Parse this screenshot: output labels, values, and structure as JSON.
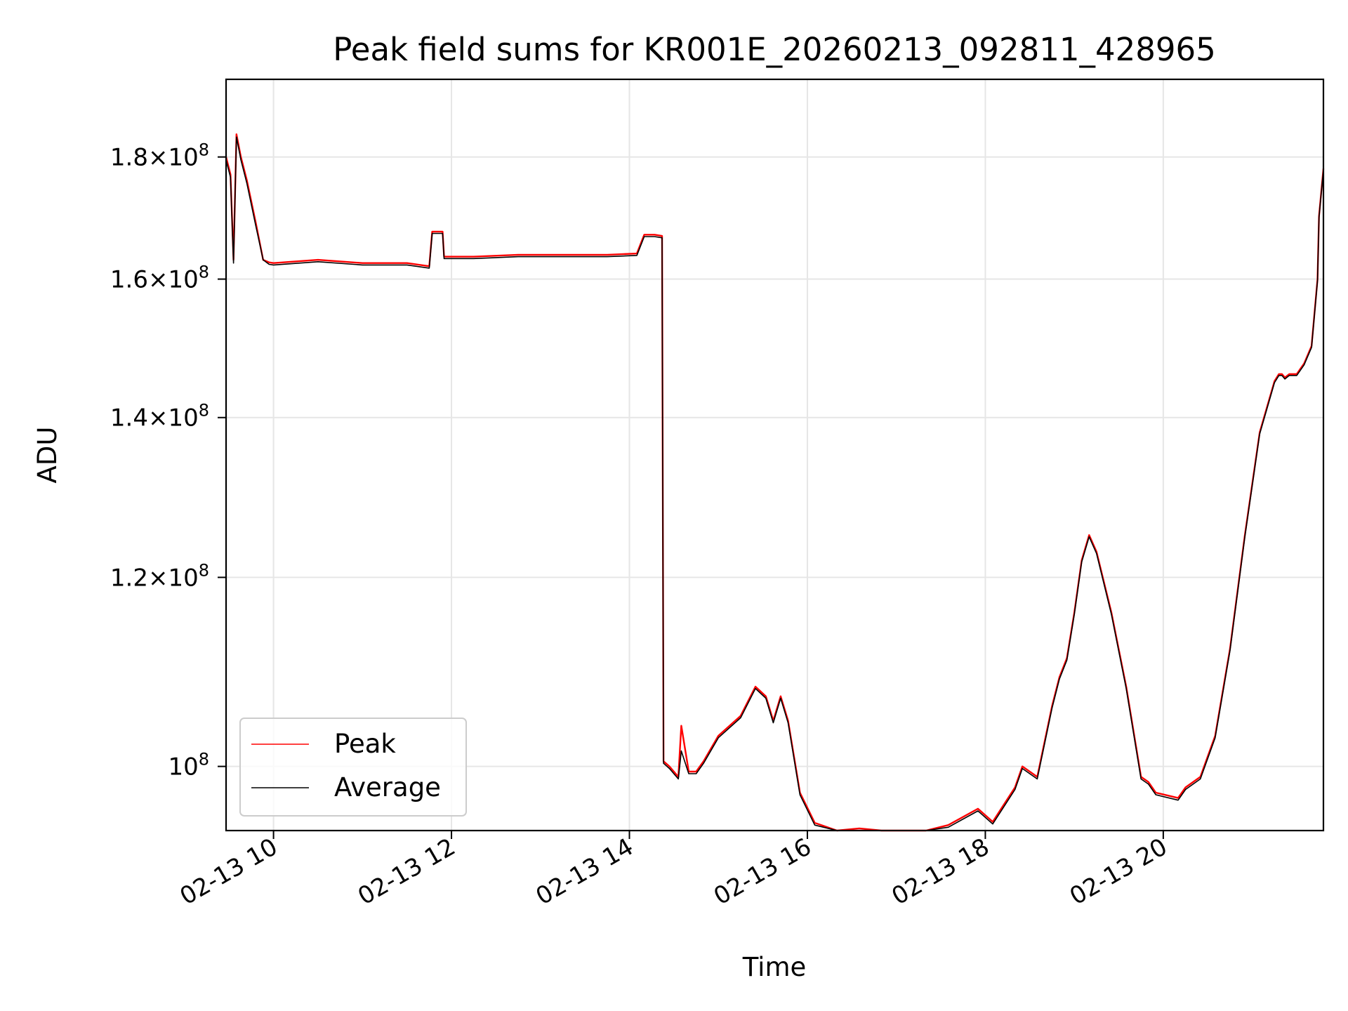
{
  "chart_data": {
    "type": "line",
    "title": "Peak field sums for KR001E_20260213_092811_428965",
    "xlabel": "Time",
    "ylabel": "ADU",
    "y_scale": "log",
    "xlim": [
      "2026-02-13 09:28",
      "2026-02-13 21:48"
    ],
    "ylim": [
      94000000,
      194000000
    ],
    "x_ticks": [
      {
        "value": "2026-02-13 10:00",
        "label": "02-13 10"
      },
      {
        "value": "2026-02-13 12:00",
        "label": "02-13 12"
      },
      {
        "value": "2026-02-13 14:00",
        "label": "02-13 14"
      },
      {
        "value": "2026-02-13 16:00",
        "label": "02-13 16"
      },
      {
        "value": "2026-02-13 18:00",
        "label": "02-13 18"
      },
      {
        "value": "2026-02-13 20:00",
        "label": "02-13 20"
      }
    ],
    "y_ticks": [
      {
        "value": 100000000,
        "mantissa": "",
        "exponent": "8",
        "label": "10^8"
      },
      {
        "value": 120000000,
        "mantissa": "1.2",
        "exponent": "8",
        "label": "1.2×10^8"
      },
      {
        "value": 140000000,
        "mantissa": "1.4",
        "exponent": "8",
        "label": "1.4×10^8"
      },
      {
        "value": 160000000,
        "mantissa": "1.6",
        "exponent": "8",
        "label": "1.6×10^8"
      },
      {
        "value": 180000000,
        "mantissa": "1.8",
        "exponent": "8",
        "label": "1.8×10^8"
      }
    ],
    "grid": true,
    "legend_position": "lower-left",
    "x": [
      "2026-02-13 09:28",
      "2026-02-13 09:31",
      "2026-02-13 09:33",
      "2026-02-13 09:35",
      "2026-02-13 09:38",
      "2026-02-13 09:42",
      "2026-02-13 09:48",
      "2026-02-13 09:53",
      "2026-02-13 09:57",
      "2026-02-13 10:00",
      "2026-02-13 10:30",
      "2026-02-13 11:00",
      "2026-02-13 11:30",
      "2026-02-13 11:45",
      "2026-02-13 11:47",
      "2026-02-13 11:54",
      "2026-02-13 11:55",
      "2026-02-13 12:15",
      "2026-02-13 12:45",
      "2026-02-13 13:15",
      "2026-02-13 13:45",
      "2026-02-13 14:05",
      "2026-02-13 14:10",
      "2026-02-13 14:17",
      "2026-02-13 14:22",
      "2026-02-13 14:23",
      "2026-02-13 14:27",
      "2026-02-13 14:33",
      "2026-02-13 14:35",
      "2026-02-13 14:40",
      "2026-02-13 14:45",
      "2026-02-13 14:50",
      "2026-02-13 15:00",
      "2026-02-13 15:15",
      "2026-02-13 15:25",
      "2026-02-13 15:32",
      "2026-02-13 15:37",
      "2026-02-13 15:42",
      "2026-02-13 15:47",
      "2026-02-13 15:55",
      "2026-02-13 16:05",
      "2026-02-13 16:20",
      "2026-02-13 16:35",
      "2026-02-13 16:50",
      "2026-02-13 17:00",
      "2026-02-13 17:20",
      "2026-02-13 17:35",
      "2026-02-13 17:55",
      "2026-02-13 18:05",
      "2026-02-13 18:20",
      "2026-02-13 18:25",
      "2026-02-13 18:35",
      "2026-02-13 18:45",
      "2026-02-13 18:50",
      "2026-02-13 18:55",
      "2026-02-13 19:00",
      "2026-02-13 19:05",
      "2026-02-13 19:10",
      "2026-02-13 19:15",
      "2026-02-13 19:25",
      "2026-02-13 19:35",
      "2026-02-13 19:45",
      "2026-02-13 19:50",
      "2026-02-13 19:55",
      "2026-02-13 20:10",
      "2026-02-13 20:15",
      "2026-02-13 20:25",
      "2026-02-13 20:35",
      "2026-02-13 20:45",
      "2026-02-13 20:55",
      "2026-02-13 21:05",
      "2026-02-13 21:15",
      "2026-02-13 21:18",
      "2026-02-13 21:20",
      "2026-02-13 21:22",
      "2026-02-13 21:25",
      "2026-02-13 21:30",
      "2026-02-13 21:35",
      "2026-02-13 21:40",
      "2026-02-13 21:44",
      "2026-02-13 21:45",
      "2026-02-13 21:48"
    ],
    "series": [
      {
        "name": "Peak",
        "color": "#ff0000",
        "values": [
          180000000,
          177000000,
          163000000,
          184000000,
          180000000,
          176000000,
          169000000,
          163000000,
          162600000,
          162500000,
          163000000,
          162500000,
          162500000,
          162000000,
          167500000,
          167500000,
          163500000,
          163500000,
          163800000,
          163800000,
          163800000,
          164000000,
          167000000,
          167000000,
          166800000,
          100500000,
          100000000,
          99000000,
          104000000,
          99500000,
          99500000,
          100500000,
          103000000,
          105000000,
          108000000,
          107000000,
          104500000,
          107000000,
          104500000,
          97500000,
          94700000,
          94000000,
          94200000,
          93800000,
          93500000,
          93700000,
          94500000,
          96000000,
          94800000,
          98000000,
          100000000,
          99000000,
          106000000,
          109000000,
          111000000,
          116000000,
          122000000,
          125000000,
          123000000,
          116000000,
          108000000,
          99000000,
          98500000,
          97500000,
          97000000,
          98000000,
          99000000,
          103000000,
          112000000,
          125000000,
          138000000,
          145000000,
          146000000,
          146000000,
          145500000,
          146000000,
          146000000,
          147500000,
          150000000,
          160000000,
          170000000,
          178000000
        ]
      },
      {
        "name": "Average",
        "color": "#000000",
        "values": [
          179500000,
          176500000,
          162500000,
          183500000,
          179500000,
          175500000,
          168500000,
          163000000,
          162300000,
          162200000,
          162700000,
          162200000,
          162200000,
          161700000,
          167200000,
          167200000,
          163200000,
          163200000,
          163500000,
          163500000,
          163500000,
          163700000,
          166700000,
          166700000,
          166500000,
          100300000,
          99800000,
          98800000,
          101500000,
          99300000,
          99300000,
          100300000,
          102800000,
          104800000,
          107800000,
          106800000,
          104300000,
          106800000,
          104300000,
          97300000,
          94500000,
          93800000,
          94000000,
          93600000,
          93300000,
          93500000,
          94300000,
          95800000,
          94600000,
          97800000,
          99800000,
          98800000,
          105800000,
          108800000,
          110800000,
          115800000,
          121800000,
          124800000,
          122800000,
          115800000,
          107800000,
          98800000,
          98300000,
          97300000,
          96800000,
          97800000,
          98800000,
          102800000,
          111800000,
          124800000,
          137800000,
          144800000,
          145800000,
          145800000,
          145300000,
          145800000,
          145800000,
          147300000,
          149800000,
          159800000,
          169800000,
          177800000
        ]
      }
    ]
  }
}
